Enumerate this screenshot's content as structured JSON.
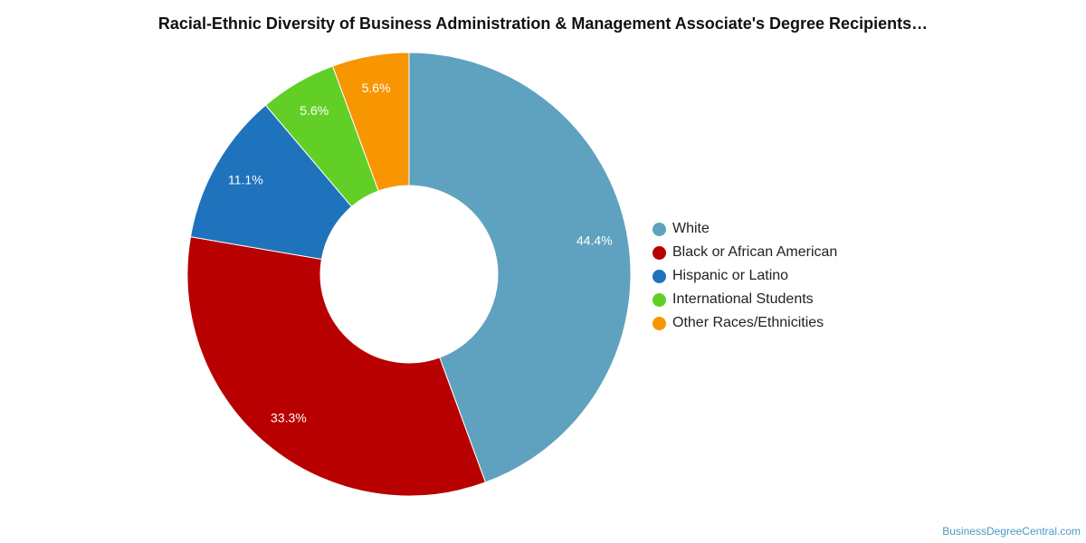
{
  "source_credit": "BusinessDegreeCentral.com",
  "chart_data": {
    "type": "pie",
    "title": "Racial-Ethnic Diversity of Business Administration & Management Associate's Degree Recipients…",
    "donut": true,
    "legend_position": "right",
    "unit": "%",
    "slices": [
      {
        "label": "White",
        "value": 44.4,
        "value_label": "44.4%",
        "color": "#5ea2bf"
      },
      {
        "label": "Black or African American",
        "value": 33.3,
        "value_label": "33.3%",
        "color": "#b80000"
      },
      {
        "label": "Hispanic or Latino",
        "value": 11.1,
        "value_label": "11.1%",
        "color": "#1f72bc"
      },
      {
        "label": "International Students",
        "value": 5.6,
        "value_label": "5.6%",
        "color": "#62cf26"
      },
      {
        "label": "Other Races/Ethnicities",
        "value": 5.6,
        "value_label": "5.6%",
        "color": "#f79600"
      }
    ]
  }
}
